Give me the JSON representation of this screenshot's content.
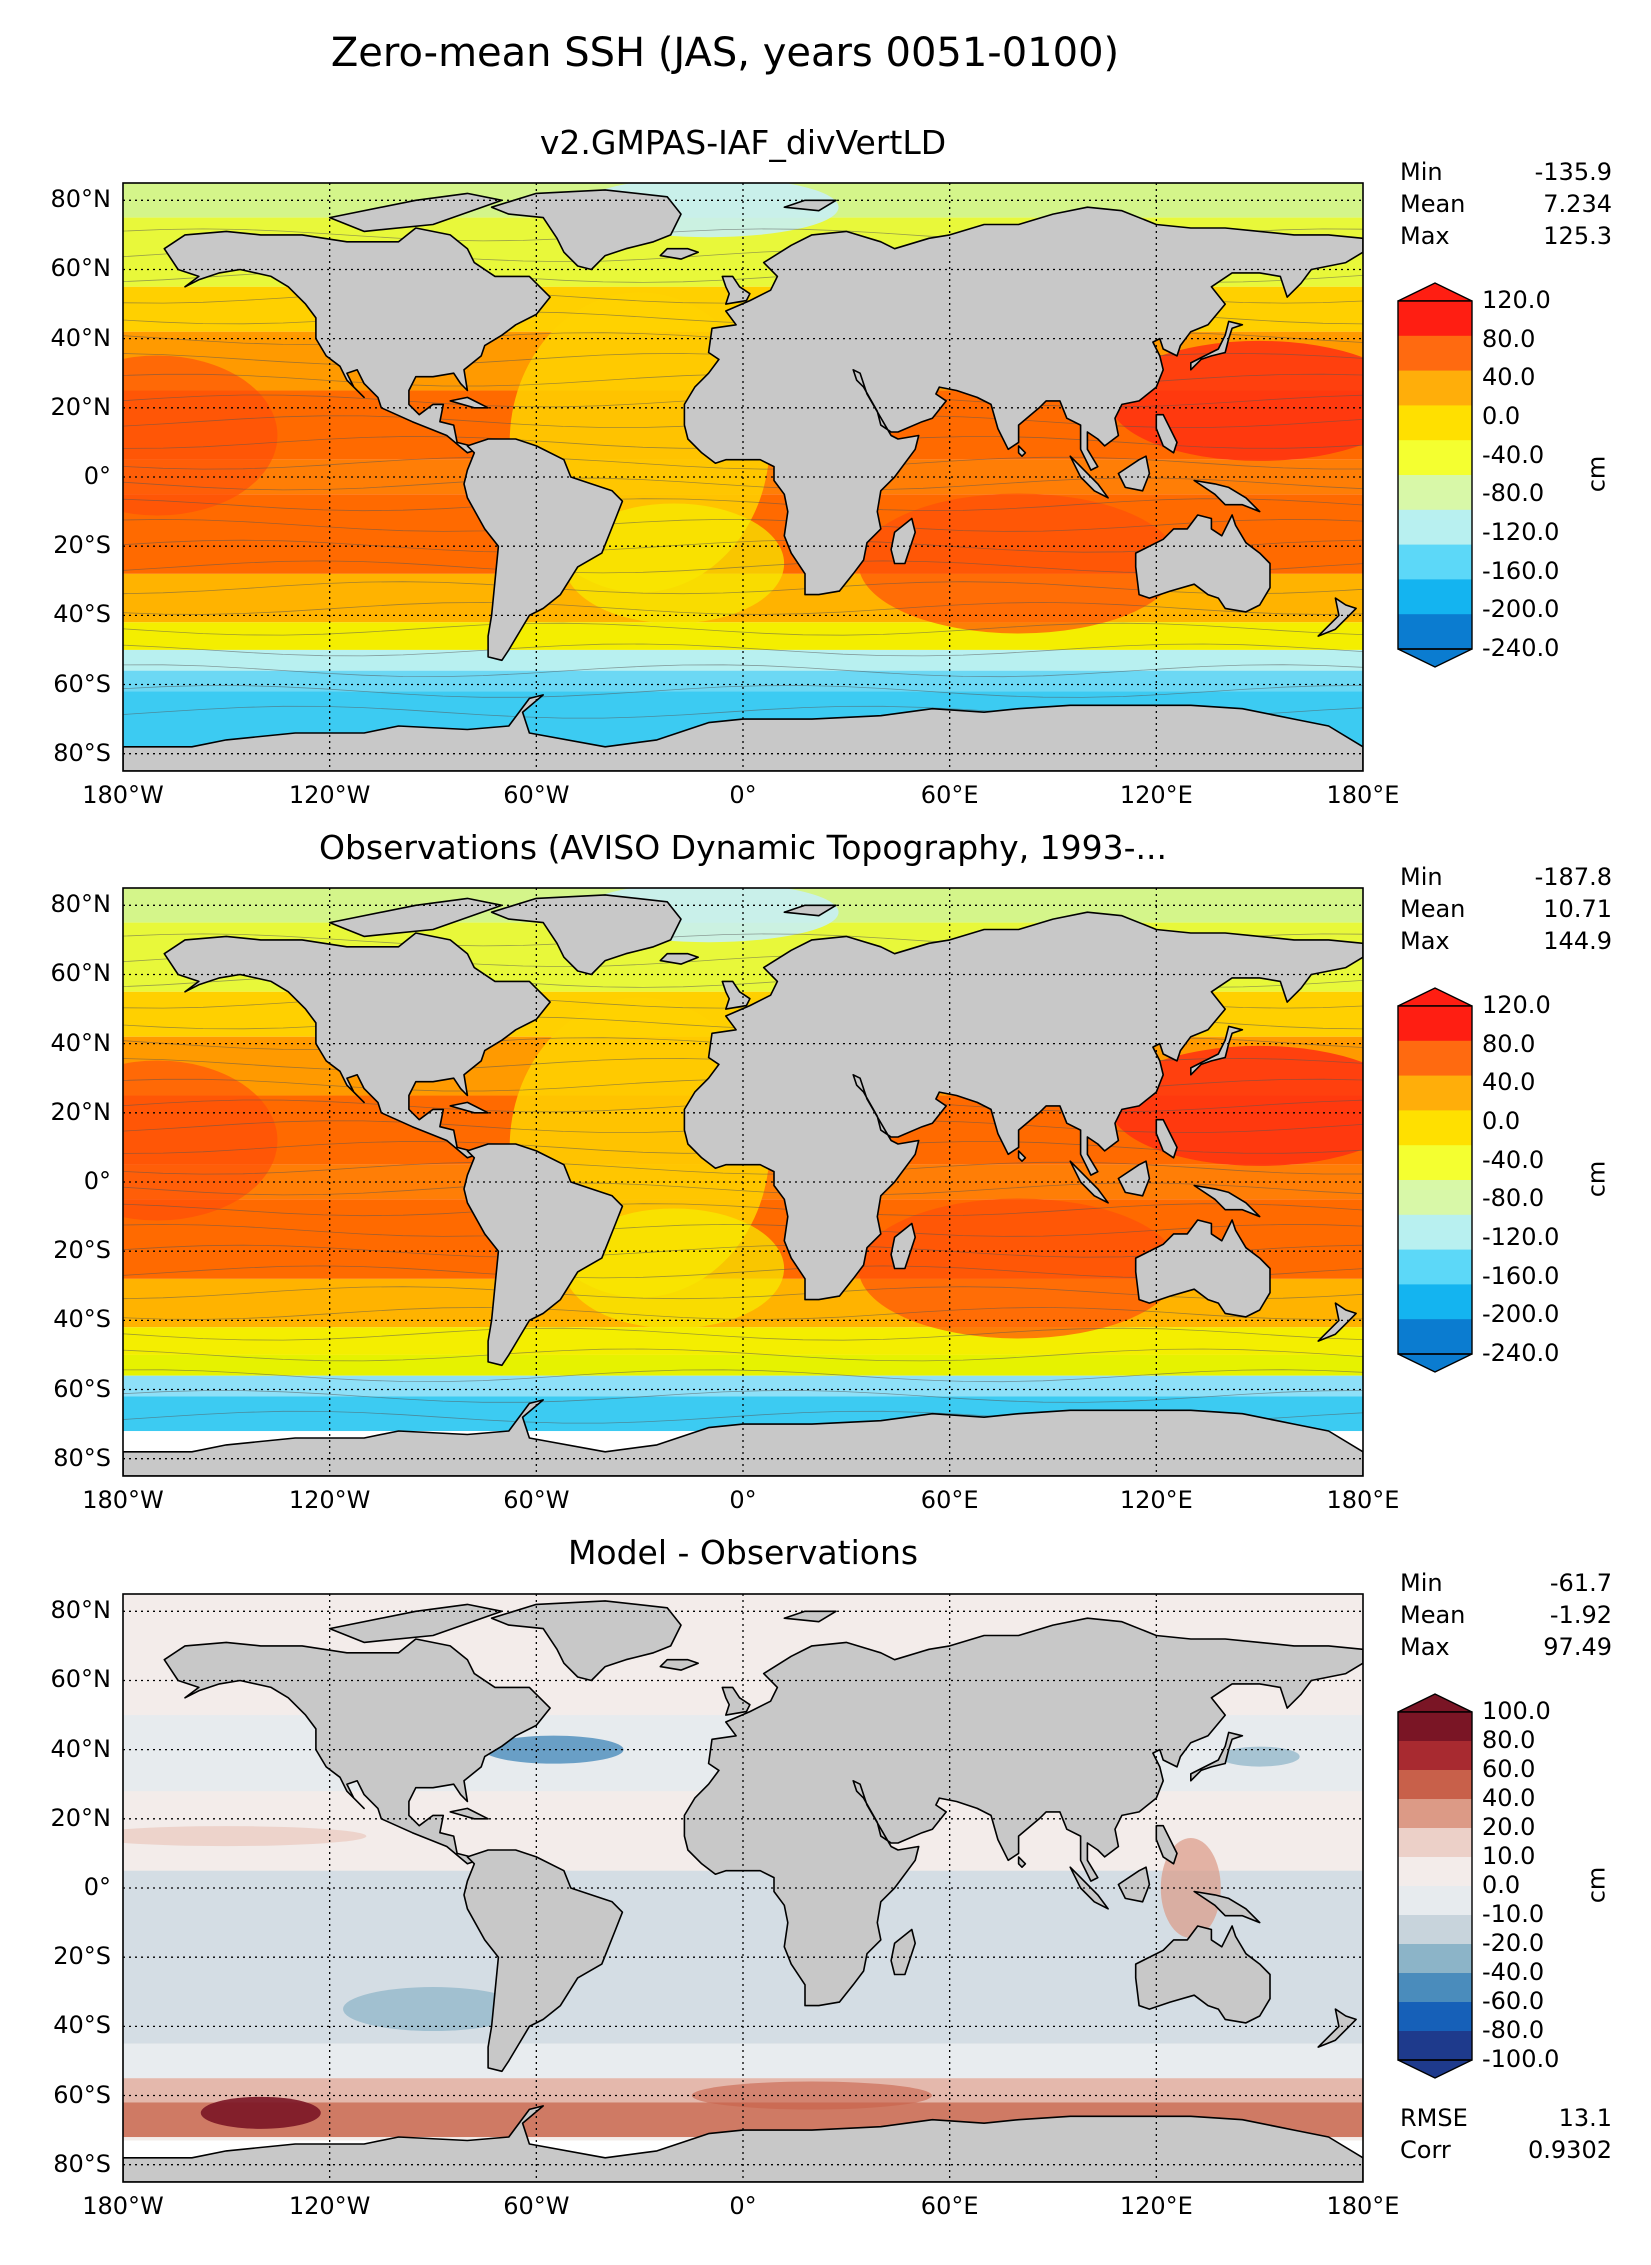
{
  "suptitle": "Zero-mean SSH (JAS, years 0051-0100)",
  "lat_ticks": [
    "80°N",
    "60°N",
    "40°N",
    "20°N",
    "0°",
    "20°S",
    "40°S",
    "60°S",
    "80°S"
  ],
  "lon_ticks": [
    "180°W",
    "120°W",
    "60°W",
    "0°",
    "60°E",
    "120°E",
    "180°E"
  ],
  "panels": [
    {
      "title": "v2.GMPAS-IAF_divVertLD",
      "stats": [
        {
          "k": "Min",
          "v": "-135.9"
        },
        {
          "k": "Mean",
          "v": "7.234"
        },
        {
          "k": "Max",
          "v": "125.3"
        }
      ],
      "colorbar": {
        "unit": "cm",
        "ticks": [
          "120.0",
          "80.0",
          "40.0",
          "0.0",
          "-40.0",
          "-80.0",
          "-120.0",
          "-160.0",
          "-200.0",
          "-240.0"
        ],
        "colors": [
          "#ff1e12",
          "#ff6a10",
          "#ffae0a",
          "#ffe000",
          "#f4ff30",
          "#d8f8a8",
          "#b8f0f0",
          "#5cd8f8",
          "#14b4f0",
          "#0b7cd0"
        ]
      },
      "colormap": "ssh"
    },
    {
      "title": "Observations (AVISO Dynamic Topography, 1993-...",
      "stats": [
        {
          "k": "Min",
          "v": "-187.8"
        },
        {
          "k": "Mean",
          "v": "10.71"
        },
        {
          "k": "Max",
          "v": "144.9"
        }
      ],
      "colorbar": {
        "unit": "cm",
        "ticks": [
          "120.0",
          "80.0",
          "40.0",
          "0.0",
          "-40.0",
          "-80.0",
          "-120.0",
          "-160.0",
          "-200.0",
          "-240.0"
        ],
        "colors": [
          "#ff1e12",
          "#ff6a10",
          "#ffae0a",
          "#ffe000",
          "#f4ff30",
          "#d8f8a8",
          "#b8f0f0",
          "#5cd8f8",
          "#14b4f0",
          "#0b7cd0"
        ]
      },
      "colormap": "ssh"
    },
    {
      "title": "Model - Observations",
      "stats": [
        {
          "k": "Min",
          "v": "-61.7"
        },
        {
          "k": "Mean",
          "v": "-1.92"
        },
        {
          "k": "Max",
          "v": "97.49"
        }
      ],
      "extra_stats": [
        {
          "k": "RMSE",
          "v": "13.1"
        },
        {
          "k": "Corr",
          "v": "0.9302"
        }
      ],
      "colorbar": {
        "unit": "cm",
        "ticks": [
          "100.0",
          "80.0",
          "60.0",
          "40.0",
          "20.0",
          "10.0",
          "0.0",
          "-10.0",
          "-20.0",
          "-40.0",
          "-60.0",
          "-80.0",
          "-100.0"
        ],
        "colors": [
          "#7a1525",
          "#a82a30",
          "#c8604a",
          "#dc9a86",
          "#ecd0c8",
          "#f3ecea",
          "#e7ebee",
          "#c8d4dc",
          "#8cb4c8",
          "#4a8cbc",
          "#1660b8",
          "#1e3a8c"
        ]
      },
      "colormap": "diff"
    }
  ]
}
